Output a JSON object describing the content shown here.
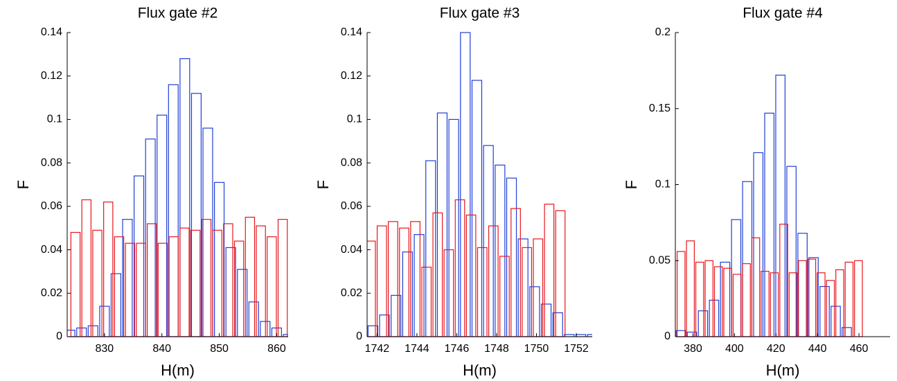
{
  "chart_data": [
    {
      "type": "histogram",
      "title": "Flux gate #2",
      "xlabel": "H(m)",
      "ylabel": "F",
      "xlim": [
        823.5,
        862
      ],
      "ylim": [
        0,
        0.14
      ],
      "xticks": [
        830,
        840,
        850,
        860
      ],
      "yticks": [
        0,
        0.02,
        0.04,
        0.06,
        0.08,
        0.1,
        0.12,
        0.14
      ],
      "series": [
        {
          "color": "#1f3fd6",
          "bins": [
            823,
            825,
            827,
            829,
            831,
            833,
            835,
            837,
            839,
            841,
            843,
            845,
            847,
            849,
            851,
            853,
            855,
            857,
            859,
            861,
            863
          ],
          "values": [
            0.003,
            0.004,
            0.005,
            0.014,
            0.029,
            0.054,
            0.074,
            0.091,
            0.102,
            0.116,
            0.128,
            0.112,
            0.096,
            0.071,
            0.041,
            0.031,
            0.016,
            0.007,
            0.004,
            0.001
          ]
        },
        {
          "color": "#e8151b",
          "bins": [
            824,
            825.9,
            827.8,
            829.7,
            831.6,
            833.5,
            835.4,
            837.3,
            839.2,
            841.1,
            843,
            844.9,
            846.8,
            848.7,
            850.6,
            852.5,
            854.4,
            856.3,
            858.2,
            860.1,
            862
          ],
          "values": [
            0.048,
            0.063,
            0.049,
            0.062,
            0.046,
            0.043,
            0.043,
            0.052,
            0.043,
            0.046,
            0.05,
            0.049,
            0.054,
            0.049,
            0.052,
            0.044,
            0.055,
            0.051,
            0.046,
            0.054
          ]
        }
      ]
    },
    {
      "type": "histogram",
      "title": "Flux gate #3",
      "xlabel": "H(m)",
      "ylabel": "F",
      "xlim": [
        1741.5,
        1752.8
      ],
      "ylim": [
        0,
        0.14
      ],
      "xticks": [
        1742,
        1744,
        1746,
        1748,
        1750,
        1752
      ],
      "yticks": [
        0,
        0.02,
        0.04,
        0.06,
        0.08,
        0.1,
        0.12,
        0.14
      ],
      "series": [
        {
          "color": "#1f3fd6",
          "bins": [
            1741.5,
            1742.08,
            1742.66,
            1743.24,
            1743.82,
            1744.4,
            1744.98,
            1745.56,
            1746.14,
            1746.72,
            1747.3,
            1747.88,
            1748.46,
            1749.04,
            1749.62,
            1750.2,
            1750.78,
            1751.36,
            1751.94,
            1752.52,
            1753.1
          ],
          "values": [
            0.005,
            0.01,
            0.019,
            0.039,
            0.047,
            0.081,
            0.103,
            0.1,
            0.14,
            0.118,
            0.088,
            0.079,
            0.073,
            0.045,
            0.023,
            0.015,
            0.011,
            0.001,
            0.001,
            0.001
          ]
        },
        {
          "color": "#e8151b",
          "bins": [
            1741.4,
            1741.96,
            1742.52,
            1743.08,
            1743.64,
            1744.2,
            1744.76,
            1745.32,
            1745.88,
            1746.44,
            1747,
            1747.56,
            1748.12,
            1748.68,
            1749.24,
            1749.8,
            1750.36,
            1750.92,
            1751.48
          ],
          "values": [
            0.044,
            0.051,
            0.053,
            0.05,
            0.053,
            0.032,
            0.057,
            0.04,
            0.063,
            0.056,
            0.041,
            0.051,
            0.037,
            0.059,
            0.041,
            0.045,
            0.061,
            0.058
          ]
        }
      ]
    },
    {
      "type": "histogram",
      "title": "Flux gate #4",
      "xlabel": "H(m)",
      "ylabel": "F",
      "xlim": [
        371.5,
        475
      ],
      "ylim": [
        0,
        0.2
      ],
      "xticks": [
        380,
        400,
        420,
        440,
        460
      ],
      "yticks": [
        0,
        0.05,
        0.1,
        0.15,
        0.2
      ],
      "series": [
        {
          "color": "#1f3fd6",
          "bins": [
            371.5,
            376.83,
            382.16,
            387.49,
            392.82,
            398.15,
            403.48,
            408.81,
            414.14,
            419.47,
            424.8,
            430.13,
            435.46,
            440.79,
            446.12,
            451.45,
            456.78,
            462.11,
            467.44,
            472.77
          ],
          "values": [
            0.004,
            0.003,
            0.017,
            0.024,
            0.049,
            0.077,
            0.102,
            0.121,
            0.147,
            0.172,
            0.112,
            0.068,
            0.052,
            0.033,
            0.02,
            0.006,
            0,
            0,
            0
          ]
        },
        {
          "color": "#e8151b",
          "bins": [
            372,
            376.5,
            381,
            385.5,
            390,
            394.5,
            399,
            403.5,
            408,
            412.5,
            417,
            421.5,
            426,
            430.5,
            435,
            439.5,
            444,
            448.5,
            453,
            457.5,
            462
          ],
          "values": [
            0.056,
            0.063,
            0.049,
            0.05,
            0.046,
            0.045,
            0.041,
            0.048,
            0.065,
            0.043,
            0.042,
            0.074,
            0.042,
            0.05,
            0.051,
            0.042,
            0.037,
            0.044,
            0.049,
            0.05
          ]
        }
      ]
    }
  ]
}
